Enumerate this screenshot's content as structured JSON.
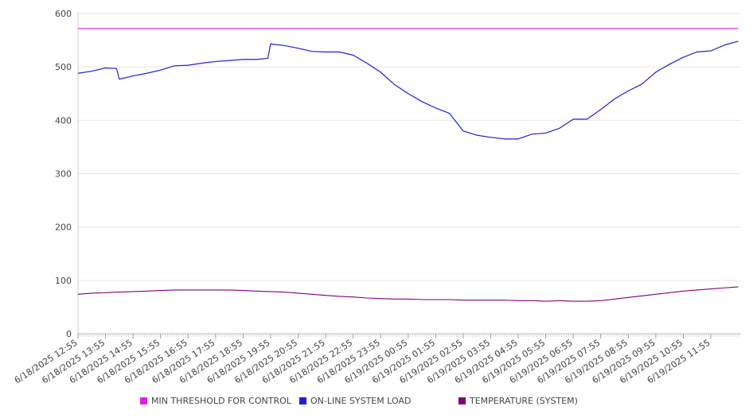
{
  "chart_data": {
    "type": "line",
    "title": "",
    "xlabel": "",
    "ylabel": "",
    "ylim": [
      0,
      600
    ],
    "yticks": [
      "0",
      "100",
      "200",
      "300",
      "400",
      "500",
      "600"
    ],
    "grid": true,
    "legend_position": "bottom",
    "x_labels": [
      "6/18/2025 12:55",
      "6/18/2025 13:55",
      "6/18/2025 14:55",
      "6/18/2025 15:55",
      "6/18/2025 16:55",
      "6/18/2025 17:55",
      "6/18/2025 18:55",
      "6/18/2025 19:55",
      "6/18/2025 20:55",
      "6/18/2025 21:55",
      "6/18/2025 22:55",
      "6/18/2025 23:55",
      "6/19/2025 00:55",
      "6/19/2025 01:55",
      "6/19/2025 02:55",
      "6/19/2025 03:55",
      "6/19/2025 04:55",
      "6/19/2025 05:55",
      "6/19/2025 06:55",
      "6/19/2025 07:55",
      "6/19/2025 08:55",
      "6/19/2025 09:55",
      "6/19/2025 10:55",
      "6/19/2025 11:55"
    ],
    "x_hours": [
      0,
      0.5,
      1,
      1.4,
      1.5,
      2,
      2.5,
      3,
      3.5,
      4,
      4.5,
      5,
      5.5,
      6,
      6.5,
      6.9,
      7,
      7.5,
      8,
      8.5,
      9,
      9.5,
      10,
      10.5,
      11,
      11.5,
      12,
      12.5,
      13,
      13.5,
      14,
      14.5,
      15,
      15.5,
      16,
      16.5,
      17,
      17.5,
      18,
      18.5,
      19,
      19.5,
      20,
      20.5,
      21,
      21.5,
      22,
      22.5,
      23,
      23.5,
      24
    ],
    "series": [
      {
        "name": "MIN THRESHOLD FOR CONTROL",
        "color": "#e020e0",
        "values": [
          572,
          572,
          572,
          572,
          572,
          572,
          572,
          572,
          572,
          572,
          572,
          572,
          572,
          572,
          572,
          572,
          572,
          572,
          572,
          572,
          572,
          572,
          572,
          572,
          572,
          572,
          572,
          572,
          572,
          572,
          572,
          572,
          572,
          572,
          572,
          572,
          572,
          572,
          572,
          572,
          572,
          572,
          572,
          572,
          572,
          572,
          572,
          572,
          572,
          572,
          572
        ]
      },
      {
        "name": "ON-LINE SYSTEM LOAD",
        "color": "#1f1fd6",
        "values": [
          488,
          492,
          498,
          497,
          477,
          483,
          488,
          494,
          502,
          503,
          507,
          510,
          512,
          514,
          514,
          516,
          543,
          540,
          535,
          529,
          528,
          528,
          522,
          507,
          490,
          467,
          450,
          435,
          423,
          413,
          380,
          372,
          368,
          365,
          365,
          374,
          376,
          385,
          402,
          402,
          420,
          440,
          455,
          468,
          490,
          505,
          518,
          528,
          530,
          541,
          548
        ]
      },
      {
        "name": "TEMPERATURE (SYSTEM)",
        "color": "#800080",
        "values": [
          74,
          76,
          77,
          78,
          78,
          79,
          80,
          81,
          82,
          82,
          82,
          82,
          82,
          81,
          80,
          79,
          79,
          78,
          76,
          74,
          72,
          70,
          69,
          67,
          66,
          65,
          65,
          64,
          64,
          64,
          63,
          63,
          63,
          63,
          62,
          62,
          61,
          62,
          61,
          61,
          62,
          65,
          68,
          71,
          74,
          77,
          80,
          82,
          84,
          86,
          88
        ]
      }
    ],
    "legend": [
      {
        "label": "MIN THRESHOLD FOR CONTROL",
        "color": "#e020e0"
      },
      {
        "label": "ON-LINE SYSTEM LOAD",
        "color": "#1f1fd6"
      },
      {
        "label": "TEMPERATURE (SYSTEM)",
        "color": "#800080"
      }
    ]
  }
}
